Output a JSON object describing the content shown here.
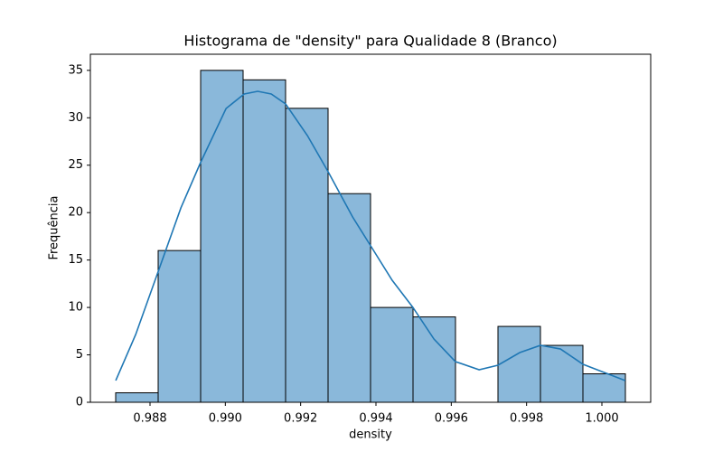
{
  "chart_data": {
    "type": "histogram",
    "title": "Histograma de \"density\" para Qualidade 8 (Branco)",
    "xlabel": "density",
    "ylabel": "Frequência",
    "bins": [
      0.987088,
      0.988216,
      0.989344,
      0.990472,
      0.9916,
      0.992728,
      0.993856,
      0.994984,
      0.996112,
      0.99724,
      0.998368,
      0.999496,
      1.000624
    ],
    "counts": [
      1,
      16,
      35,
      34,
      31,
      22,
      10,
      9,
      0,
      8,
      6,
      3
    ],
    "color": "#8ab8da",
    "edgecolor": "#000000",
    "kde": {
      "color": "#1f77b4",
      "x": [
        0.98709,
        0.98762,
        0.98822,
        0.98882,
        0.98934,
        0.99002,
        0.9905,
        0.99086,
        0.99122,
        0.9916,
        0.99218,
        0.99273,
        0.99338,
        0.99386,
        0.99443,
        0.99498,
        0.99554,
        0.99611,
        0.99674,
        0.99724,
        0.99782,
        0.99837,
        0.9989,
        0.9995,
        1.00062
      ],
      "y": [
        2.29,
        7.15,
        13.82,
        20.5,
        25.26,
        30.98,
        32.51,
        32.79,
        32.51,
        31.46,
        28.12,
        24.31,
        19.54,
        16.49,
        12.87,
        10.01,
        6.67,
        4.29,
        3.43,
        3.91,
        5.24,
        6.01,
        5.62,
        4.0,
        2.29
      ]
    },
    "xlim": [
      0.986416,
      1.001296
    ],
    "ylim": [
      0,
      36.7
    ],
    "xticks": [
      0.988,
      {
        "value": 0.99,
        "label": "0.990"
      },
      0.992,
      0.994,
      0.996,
      0.998,
      {
        "value": 1,
        "label": "1.000"
      }
    ],
    "yticks": [
      0,
      5,
      10,
      15,
      20,
      25,
      30,
      35
    ]
  }
}
